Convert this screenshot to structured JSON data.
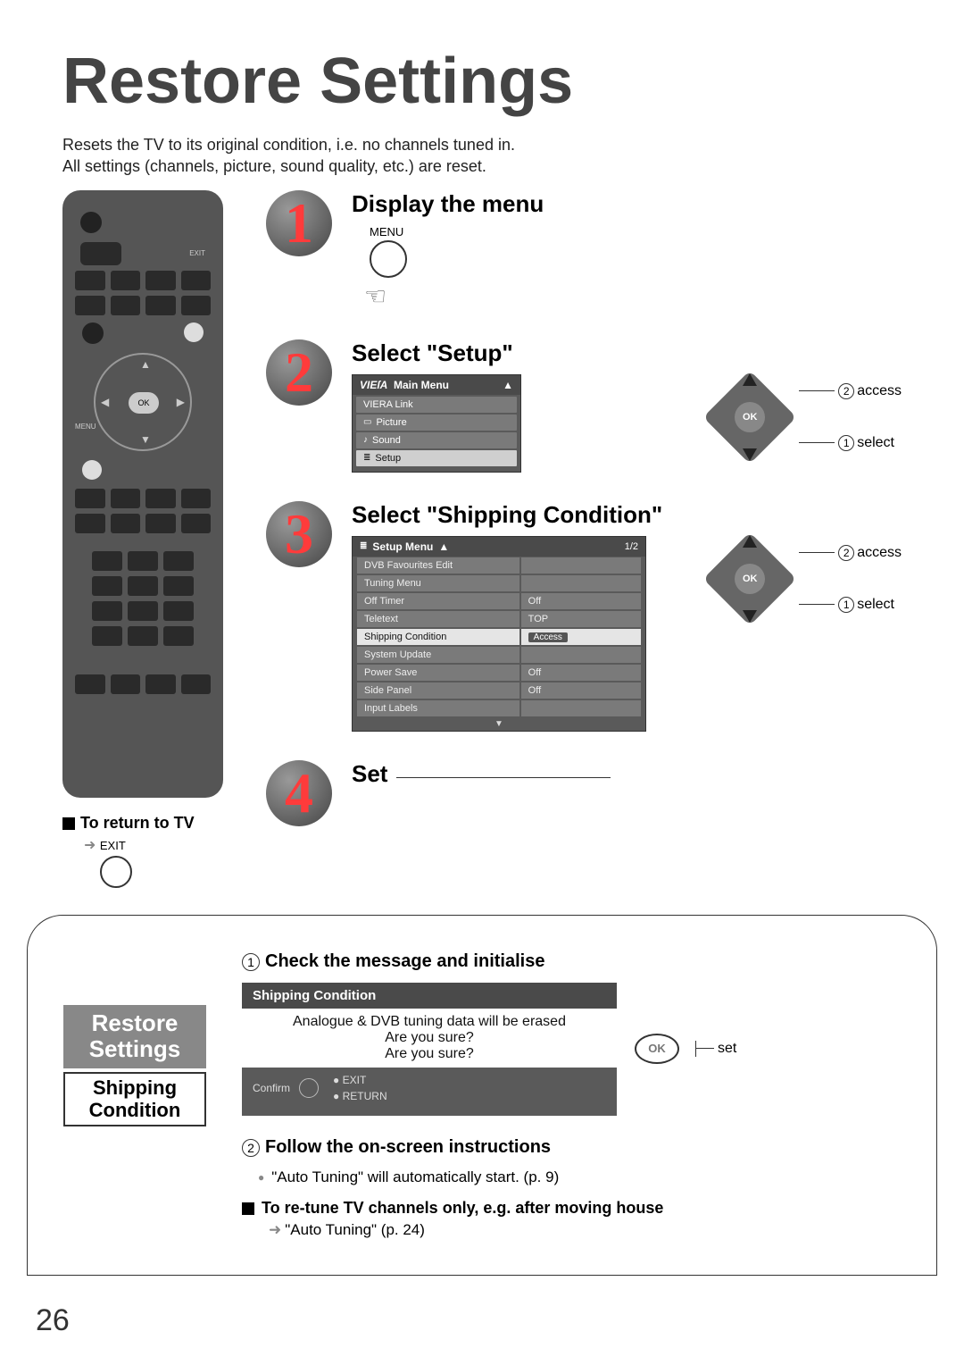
{
  "page": {
    "title": "Restore Settings",
    "intro1": "Resets the TV to its original condition, i.e. no channels tuned in.",
    "intro2": "All settings (channels, picture, sound quality, etc.) are reset.",
    "number": "26"
  },
  "remote": {
    "return_label": "To return to TV",
    "exit_label": "EXIT",
    "menu_label": "MENU",
    "ok": "OK",
    "exit_small": "EXIT"
  },
  "steps": {
    "s1": {
      "num": "1",
      "title": "Display the menu",
      "btn": "MENU"
    },
    "s2": {
      "num": "2",
      "title": "Select \"Setup\"",
      "osd_header": "Main Menu",
      "brand": "VIEſA",
      "items": [
        "VIERA Link",
        "Picture",
        "Sound",
        "Setup"
      ],
      "nav_access": "access",
      "nav_select": "select",
      "nav_ok": "OK"
    },
    "s3": {
      "num": "3",
      "title": "Select \"Shipping Condition\"",
      "osd_header": "Setup Menu",
      "page_frac": "1/2",
      "rows": [
        {
          "l": "DVB Favourites Edit",
          "r": ""
        },
        {
          "l": "Tuning Menu",
          "r": ""
        },
        {
          "l": "Off Timer",
          "r": "Off"
        },
        {
          "l": "Teletext",
          "r": "TOP"
        },
        {
          "l": "Shipping Condition",
          "r": "Access",
          "sel": true
        },
        {
          "l": "System Update",
          "r": ""
        },
        {
          "l": "Power Save",
          "r": "Off"
        },
        {
          "l": "Side Panel",
          "r": "Off"
        },
        {
          "l": "Input Labels",
          "r": ""
        }
      ],
      "nav_access": "access",
      "nav_select": "select",
      "nav_ok": "OK"
    },
    "s4": {
      "num": "4",
      "title": "Set"
    }
  },
  "bottom": {
    "left_title1": "Restore",
    "left_title2": "Settings",
    "left_sub1": "Shipping",
    "left_sub2": "Condition",
    "check_title": "Check the message and initialise",
    "ship_header": "Shipping Condition",
    "ship_msg1": "Analogue & DVB tuning data will be erased",
    "ship_msg2": "Are you sure?",
    "ship_msg3": "Are you sure?",
    "confirm": "Confirm",
    "exit": "EXIT",
    "return": "RETURN",
    "ok": "OK",
    "set": "set",
    "follow_title": "Follow the on-screen instructions",
    "bullet1": "\"Auto Tuning\" will automatically start. (p. 9)",
    "retune": "To re-tune TV channels only, e.g. after moving house",
    "retune_sub": "\"Auto Tuning\" (p. 24)"
  },
  "colors": {
    "title": "#444444",
    "step_num": "#ff3b3b",
    "osd_bg": "#5a5a5a",
    "osd_item": "#7a7a7a",
    "osd_sel": "#e5e5e5"
  }
}
